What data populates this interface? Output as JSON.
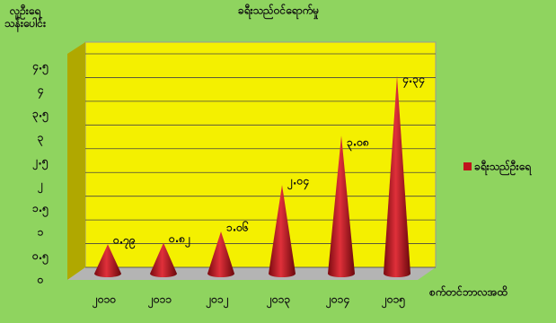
{
  "chart_data": {
    "type": "cone",
    "title": "ခရီးသည်ဝင်ရောက်မှု",
    "y_label": "လူဦးရေ သန်းပေါင်း",
    "x_annotation": "စက်တင်ဘာလအထိ",
    "categories": [
      "၂၀၁၀",
      "၂၀၁၁",
      "၂၀၁၂",
      "၂၀၁၃",
      "၂၀၁၄",
      "၂၀၁၅"
    ],
    "series": [
      {
        "name": "ခရီးသည်ဦးရေ",
        "color": "#c0141c",
        "values": [
          0.79,
          0.82,
          1.06,
          2.04,
          3.08,
          4.34
        ],
        "value_labels": [
          "၀.၇၉",
          "၀.၈၂",
          "၁.၀၆",
          "၂.၀၄",
          "၃.၀၈",
          "၄.၃၄"
        ]
      }
    ],
    "ylim": [
      0,
      4.5
    ],
    "yticks": [
      {
        "value": 0,
        "label": "၀"
      },
      {
        "value": 0.5,
        "label": "၀.၅"
      },
      {
        "value": 1,
        "label": "၁"
      },
      {
        "value": 1.5,
        "label": "၁.၅"
      },
      {
        "value": 2,
        "label": "၂"
      },
      {
        "value": 2.5,
        "label": "၂.၅"
      },
      {
        "value": 3,
        "label": "၃"
      },
      {
        "value": 3.5,
        "label": "၃.၅"
      },
      {
        "value": 4,
        "label": "၄"
      },
      {
        "value": 4.5,
        "label": "၄.၅"
      }
    ],
    "grid": true,
    "legend": "right"
  }
}
